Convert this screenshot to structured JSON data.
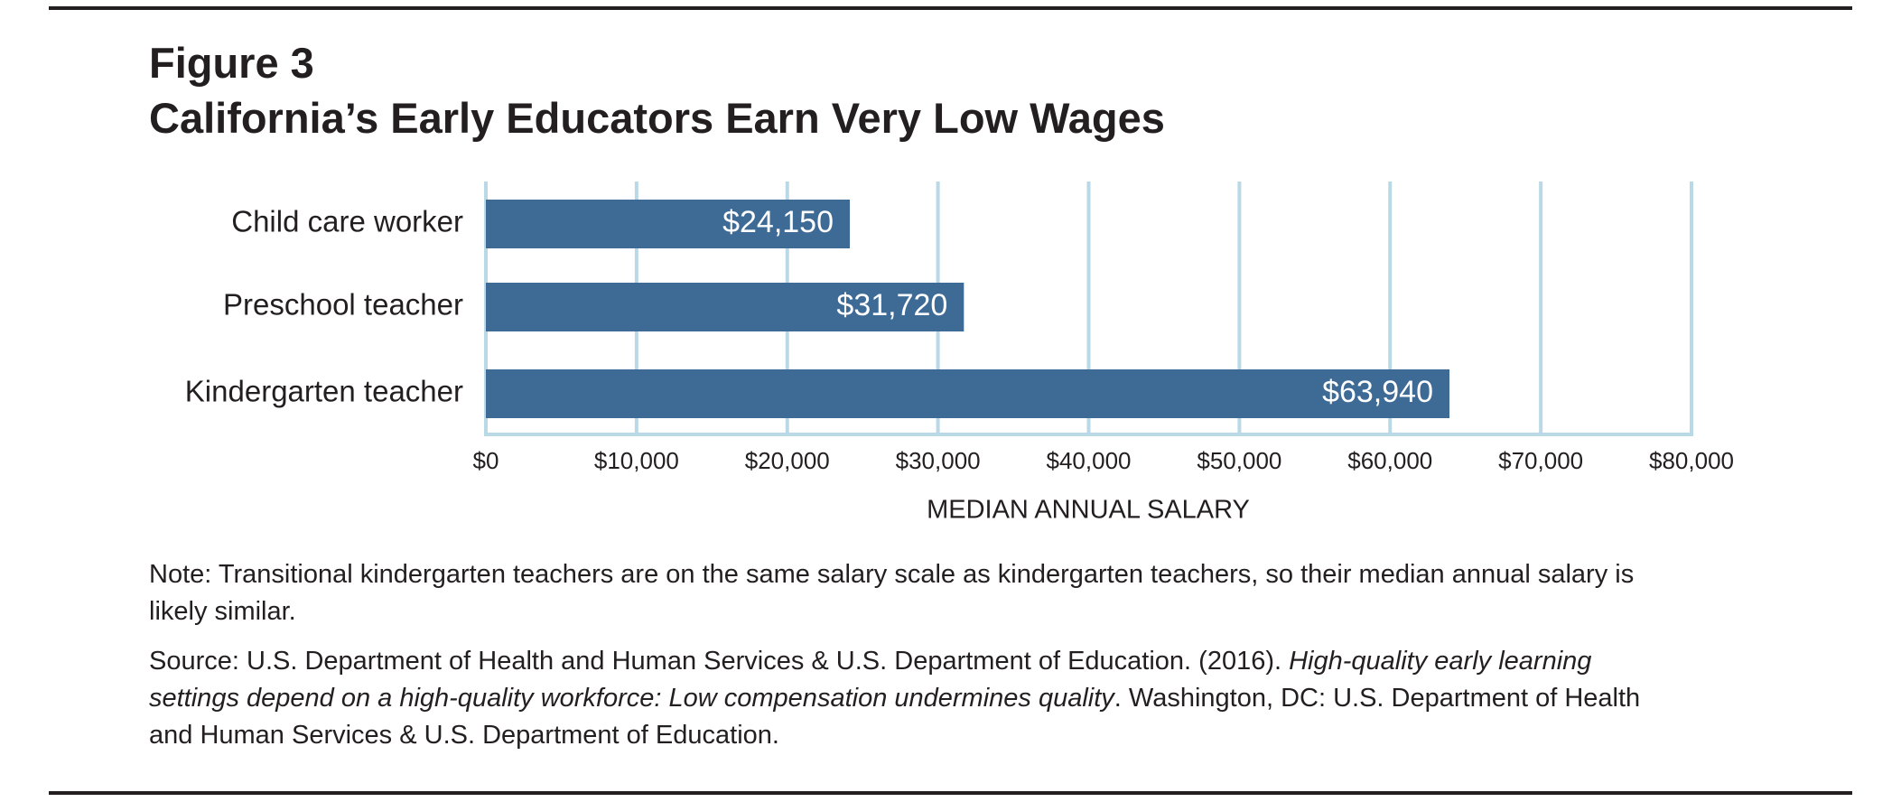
{
  "chart_data": {
    "type": "bar",
    "orientation": "horizontal",
    "figure_label": "Figure 3",
    "title": "California’s Early Educators Earn Very Low Wages",
    "categories": [
      "Child care worker",
      "Preschool teacher",
      "Kindergarten teacher"
    ],
    "values": [
      24150,
      31720,
      63940
    ],
    "value_labels": [
      "$24,150",
      "$31,720",
      "$63,940"
    ],
    "color": "#3e6a96",
    "xlim": [
      0,
      80000
    ],
    "xticks": [
      {
        "value": 0,
        "label": "$0"
      },
      {
        "value": 10000,
        "label": "$10,000"
      },
      {
        "value": 20000,
        "label": "$20,000"
      },
      {
        "value": 30000,
        "label": "$30,000"
      },
      {
        "value": 40000,
        "label": "$40,000"
      },
      {
        "value": 50000,
        "label": "$50,000"
      },
      {
        "value": 60000,
        "label": "$60,000"
      },
      {
        "value": 70000,
        "label": "$70,000"
      },
      {
        "value": 80000,
        "label": "$80,000"
      }
    ],
    "xlabel": "MEDIAN ANNUAL SALARY",
    "grid": true,
    "note": "Note: Transitional kindergarten teachers are on the same salary scale as kindergarten teachers, so their median annual salary is likely similar.",
    "source": [
      "Source: U.S. Department of Health and Human Services & U.S. Department of Education. (2016). ",
      "High-quality early learning settings depend on a high-quality workforce: Low compensation undermines quality",
      ". Washington, DC: U.S. Department of Health and Human Services & U.S. Department of Education."
    ]
  }
}
